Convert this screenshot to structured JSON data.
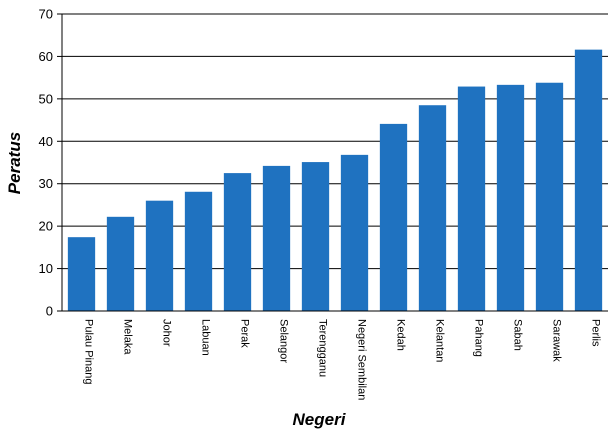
{
  "chart_data": {
    "type": "bar",
    "title": "",
    "xlabel": "Negeri",
    "ylabel": "Peratus",
    "ylim": [
      0,
      70
    ],
    "yticks": [
      0,
      10,
      20,
      30,
      40,
      50,
      60,
      70
    ],
    "grid": true,
    "legend": "none",
    "bar_color": "#1f72c0",
    "categories": [
      "Pulau Pinang",
      "Melaka",
      "Johor",
      "Labuan",
      "Perak",
      "Selangor",
      "Terengganu",
      "Negeri Sembilan",
      "Kedah",
      "Kelantan",
      "Pahang",
      "Sabah",
      "Sarawak",
      "Perlis"
    ],
    "values": [
      17.4,
      22.2,
      26.0,
      28.1,
      32.5,
      34.2,
      35.1,
      36.8,
      44.1,
      48.5,
      52.9,
      53.3,
      53.8,
      61.6
    ]
  }
}
